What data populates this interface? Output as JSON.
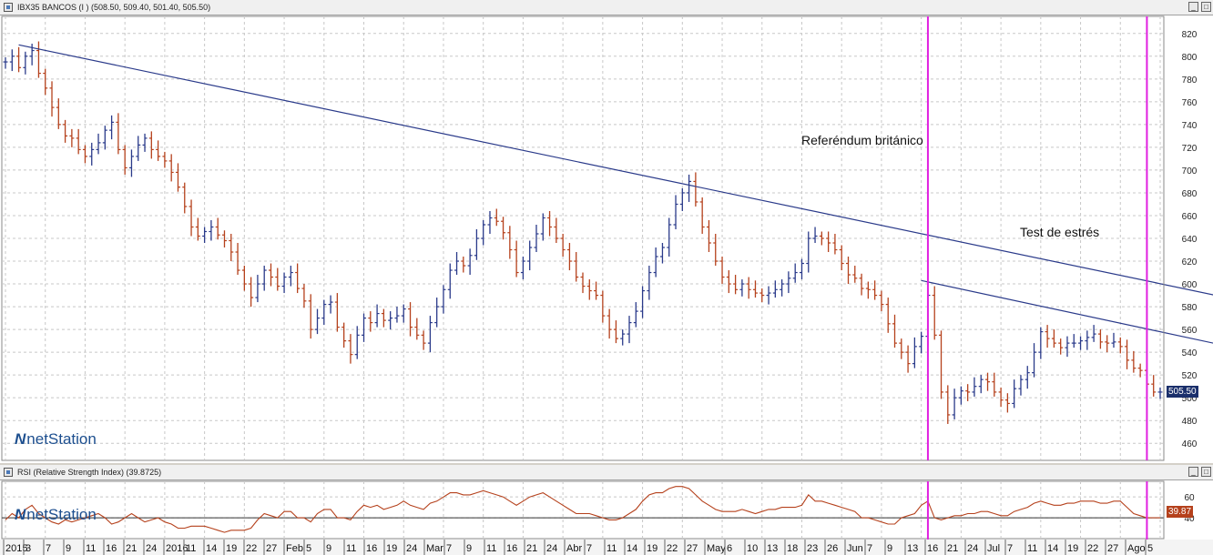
{
  "price_panel": {
    "title": "IBX35 BANCOS (I ) (508.50, 509.40, 501.40, 505.50)",
    "last_price": "505.50",
    "y_ticks": [
      "820",
      "800",
      "780",
      "760",
      "740",
      "720",
      "700",
      "680",
      "660",
      "640",
      "620",
      "600",
      "580",
      "560",
      "540",
      "520",
      "500",
      "480",
      "460"
    ],
    "annotations": {
      "brexit": "Referéndum británico",
      "stress": "Test de estrés"
    },
    "brand": {
      "logo": "N",
      "text": "netStation"
    }
  },
  "rsi_panel": {
    "title": "RSI (Relative Strength Index) (39.8725)",
    "last_value": "39.87",
    "y_ticks": [
      "60",
      "40"
    ],
    "brand": {
      "logo": "N",
      "text": "netStation"
    }
  },
  "x_axis": {
    "labels": [
      "2015",
      "3",
      "7",
      "9",
      "11",
      "16",
      "21",
      "24",
      "2016",
      "11",
      "14",
      "19",
      "22",
      "27",
      "Feb",
      "5",
      "9",
      "11",
      "16",
      "19",
      "24",
      "Mar",
      "7",
      "9",
      "11",
      "16",
      "21",
      "24",
      "Abr",
      "7",
      "11",
      "14",
      "19",
      "22",
      "27",
      "May",
      "6",
      "10",
      "13",
      "18",
      "23",
      "26",
      "Jun",
      "7",
      "9",
      "13",
      "16",
      "21",
      "24",
      "Jul",
      "7",
      "11",
      "14",
      "19",
      "22",
      "27",
      "Ago",
      "5"
    ]
  },
  "window_buttons": {
    "minimize": "_",
    "maximize": "□"
  },
  "colors": {
    "up": "#2a3a8a",
    "down": "#b5411c",
    "vline": "#e020e0",
    "trend": "#2a3a8a",
    "rsi": "#b5411c"
  },
  "chart_data": [
    {
      "type": "bar",
      "title": "IBX35 BANCOS (I ) (508.50, 509.40, 501.40, 505.50)",
      "ylim": [
        445,
        835
      ],
      "y_ticks": [
        820,
        800,
        780,
        760,
        740,
        720,
        700,
        680,
        660,
        640,
        620,
        600,
        580,
        560,
        540,
        520,
        500,
        480,
        460
      ],
      "close": [
        795,
        800,
        790,
        800,
        805,
        785,
        772,
        755,
        740,
        730,
        728,
        718,
        712,
        718,
        724,
        735,
        742,
        718,
        702,
        712,
        722,
        728,
        718,
        712,
        708,
        698,
        685,
        668,
        650,
        642,
        646,
        650,
        643,
        638,
        628,
        612,
        600,
        588,
        600,
        612,
        606,
        598,
        606,
        610,
        596,
        585,
        560,
        570,
        582,
        584,
        562,
        550,
        538,
        555,
        570,
        566,
        574,
        568,
        570,
        572,
        578,
        562,
        555,
        548,
        566,
        580,
        595,
        612,
        620,
        616,
        625,
        640,
        652,
        658,
        655,
        645,
        630,
        610,
        620,
        632,
        644,
        658,
        650,
        640,
        630,
        620,
        606,
        598,
        594,
        590,
        572,
        560,
        552,
        556,
        566,
        576,
        594,
        610,
        624,
        632,
        652,
        670,
        680,
        690,
        672,
        650,
        636,
        620,
        606,
        600,
        595,
        600,
        595,
        592,
        590,
        592,
        595,
        600,
        605,
        610,
        618,
        640,
        642,
        640,
        636,
        630,
        618,
        608,
        605,
        596,
        595,
        590,
        582,
        565,
        548,
        540,
        530,
        545,
        554,
        590,
        555,
        505,
        485,
        500,
        506,
        505,
        510,
        516,
        514,
        505,
        498,
        495,
        508,
        516,
        522,
        540,
        558,
        552,
        548,
        544,
        548,
        548,
        550,
        553,
        556,
        549,
        548,
        549,
        545,
        533,
        526,
        524,
        512,
        505,
        505
      ],
      "x_labels": [
        "2015",
        "3",
        "7",
        "9",
        "11",
        "16",
        "21",
        "24",
        "2016",
        "11",
        "14",
        "19",
        "22",
        "27",
        "Feb",
        "5",
        "9",
        "11",
        "16",
        "19",
        "24",
        "Mar",
        "7",
        "9",
        "11",
        "16",
        "21",
        "24",
        "Abr",
        "7",
        "11",
        "14",
        "19",
        "22",
        "27",
        "May",
        "6",
        "10",
        "13",
        "18",
        "23",
        "26",
        "Jun",
        "7",
        "9",
        "13",
        "16",
        "21",
        "24",
        "Jul",
        "7",
        "11",
        "14",
        "19",
        "22",
        "27",
        "Ago",
        "5"
      ],
      "trendlines": [
        {
          "from_index": 2,
          "from_value": 810,
          "to_index": 184,
          "to_value": 588
        },
        {
          "from_index": 138,
          "from_value": 603,
          "to_index": 182,
          "to_value": 548
        }
      ],
      "events": [
        {
          "label": "Referéndum británico",
          "index": 139
        },
        {
          "label": "Test de estrés",
          "index": 172
        }
      ],
      "last_label": "505.50"
    },
    {
      "type": "line",
      "title": "RSI (Relative Strength Index) (39.8725)",
      "ylim": [
        20,
        75
      ],
      "y_ticks": [
        60,
        40
      ],
      "series": [
        {
          "name": "RSI (Relative Strength Index)",
          "values": [
            38,
            44,
            40,
            48,
            52,
            44,
            40,
            36,
            34,
            38,
            36,
            38,
            40,
            42,
            44,
            40,
            34,
            36,
            40,
            44,
            40,
            36,
            38,
            40,
            36,
            34,
            30,
            30,
            32,
            32,
            32,
            30,
            28,
            26,
            28,
            28,
            28,
            30,
            38,
            44,
            42,
            40,
            46,
            46,
            40,
            40,
            36,
            44,
            48,
            48,
            40,
            40,
            38,
            46,
            52,
            50,
            52,
            48,
            50,
            52,
            56,
            52,
            50,
            48,
            54,
            56,
            60,
            64,
            64,
            62,
            62,
            64,
            66,
            64,
            62,
            60,
            56,
            52,
            56,
            60,
            62,
            64,
            60,
            56,
            52,
            48,
            44,
            44,
            44,
            42,
            40,
            38,
            38,
            40,
            44,
            48,
            56,
            62,
            64,
            64,
            68,
            70,
            70,
            68,
            62,
            56,
            52,
            48,
            46,
            46,
            46,
            48,
            46,
            44,
            46,
            48,
            48,
            50,
            50,
            50,
            52,
            62,
            56,
            56,
            54,
            52,
            50,
            48,
            46,
            40,
            40,
            38,
            36,
            34,
            34,
            40,
            42,
            44,
            52,
            56,
            40,
            38,
            40,
            42,
            42,
            44,
            44,
            46,
            46,
            44,
            42,
            42,
            46,
            48,
            50,
            54,
            56,
            54,
            52,
            52,
            54,
            54,
            56,
            56,
            56,
            54,
            54,
            56,
            56,
            50,
            44,
            42,
            40,
            40,
            40
          ]
        }
      ],
      "reference_line": 40,
      "last_label": "39.87"
    }
  ]
}
